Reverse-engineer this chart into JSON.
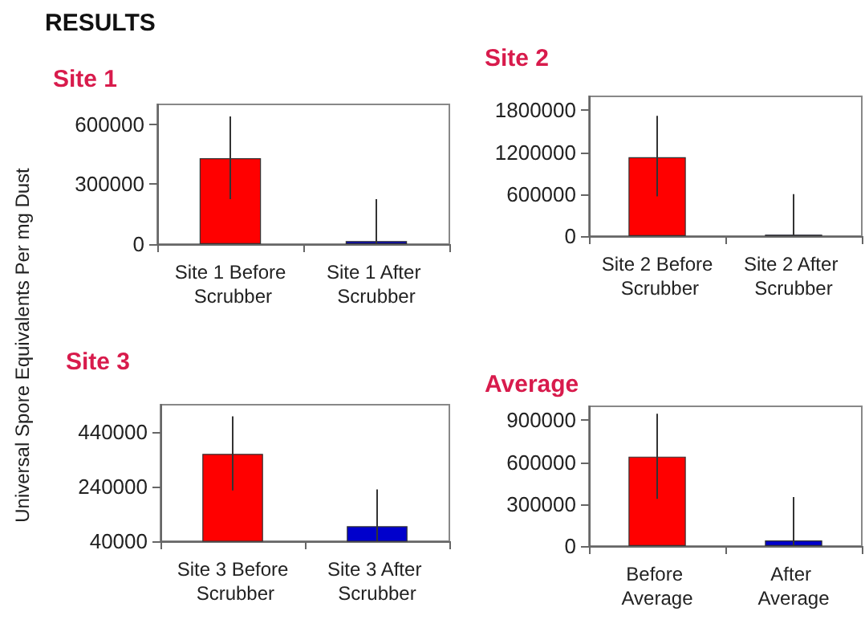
{
  "chart_data": [
    {
      "type": "bar",
      "title": "Site 1",
      "annotations": [
        "RESULTS"
      ],
      "ylabel": "Universal Spore Equivalents Per mg Dust",
      "categories": [
        "Site 1 Before Scrubber",
        "Site 1 After Scrubber"
      ],
      "values": [
        430000,
        15000
      ],
      "colors": [
        "#ff0000",
        "#0000cc"
      ],
      "errors": [
        [
          225000,
          640000
        ],
        [
          0,
          225000
        ]
      ],
      "ylim": [
        0,
        700000
      ],
      "yticks": [
        0,
        300000,
        600000
      ],
      "grid": false
    },
    {
      "type": "bar",
      "title": "Site 2",
      "categories": [
        "Site 2 Before Scrubber",
        "Site 2 After Scrubber"
      ],
      "values": [
        1130000,
        20000
      ],
      "colors": [
        "#ff0000",
        "#0000cc"
      ],
      "errors": [
        [
          570000,
          1720000
        ],
        [
          0,
          600000
        ]
      ],
      "ylim": [
        0,
        2000000
      ],
      "yticks": [
        0,
        600000,
        1200000,
        1800000
      ],
      "grid": false
    },
    {
      "type": "bar",
      "title": "Site 3",
      "categories": [
        "Site 3 Before Scrubber",
        "Site 3 After Scrubber"
      ],
      "values": [
        360000,
        95000
      ],
      "colors": [
        "#ff0000",
        "#0000cc"
      ],
      "errors": [
        [
          226000,
          497000
        ],
        [
          40000,
          230000
        ]
      ],
      "ylim": [
        40000,
        540000
      ],
      "yticks": [
        40000,
        240000,
        440000
      ],
      "grid": false
    },
    {
      "type": "bar",
      "title": "Average",
      "categories": [
        "Before Average",
        "After Average"
      ],
      "values": [
        640000,
        40000
      ],
      "colors": [
        "#ff0000",
        "#0000cc"
      ],
      "errors": [
        [
          338000,
          947000
        ],
        [
          0,
          350000
        ]
      ],
      "ylim": [
        0,
        1000000
      ],
      "yticks": [
        0,
        300000,
        600000,
        900000
      ],
      "grid": false
    }
  ]
}
